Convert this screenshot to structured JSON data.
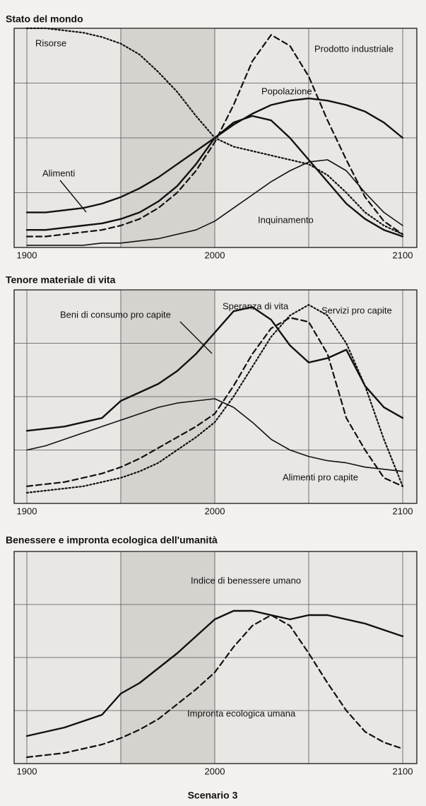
{
  "chart_data": [
    {
      "type": "line",
      "title": "Stato del mondo",
      "x": [
        1900,
        1910,
        1920,
        1930,
        1940,
        1950,
        1960,
        1970,
        1980,
        1990,
        2000,
        2010,
        2020,
        2030,
        2040,
        2050,
        2060,
        2070,
        2080,
        2090,
        2100
      ],
      "xlim": [
        1900,
        2100
      ],
      "xticks": [
        1900,
        2000,
        2100
      ],
      "ylim": [
        0,
        100
      ],
      "grid": true,
      "series": [
        {
          "name": "Risorse",
          "color": "#111111",
          "style": "dotted",
          "values": [
            100,
            100,
            99,
            98,
            96,
            93,
            88,
            80,
            71,
            60,
            50,
            46,
            44,
            42,
            40,
            38,
            33,
            25,
            16,
            10,
            6
          ]
        },
        {
          "name": "Prodotto industriale",
          "color": "#111111",
          "style": "dashed",
          "values": [
            5,
            5,
            6,
            7,
            8,
            10,
            13,
            18,
            25,
            35,
            48,
            65,
            85,
            97,
            92,
            78,
            58,
            40,
            23,
            12,
            6
          ]
        },
        {
          "name": "Popolazione",
          "color": "#111111",
          "style": "solid",
          "values": [
            16,
            16,
            17,
            18,
            20,
            23,
            27,
            32,
            38,
            44,
            50,
            56,
            61,
            65,
            67,
            68,
            67,
            65,
            62,
            57,
            50
          ]
        },
        {
          "name": "Alimenti",
          "color": "#111111",
          "style": "solid",
          "values": [
            8,
            8,
            9,
            10,
            11,
            13,
            16,
            21,
            28,
            38,
            50,
            57,
            60,
            58,
            50,
            40,
            30,
            20,
            13,
            8,
            5
          ]
        },
        {
          "name": "Inquinamento",
          "color": "#111111",
          "style": "thin",
          "values": [
            1,
            1,
            1,
            1,
            2,
            2,
            3,
            4,
            6,
            8,
            12,
            18,
            24,
            30,
            35,
            39,
            40,
            35,
            25,
            16,
            10
          ]
        }
      ]
    },
    {
      "type": "line",
      "title": "Tenore materiale di vita",
      "x": [
        1900,
        1910,
        1920,
        1930,
        1940,
        1950,
        1960,
        1970,
        1980,
        1990,
        2000,
        2010,
        2020,
        2030,
        2040,
        2050,
        2060,
        2070,
        2080,
        2090,
        2100
      ],
      "xlim": [
        1900,
        2100
      ],
      "xticks": [
        1900,
        2000,
        2100
      ],
      "ylim": [
        0,
        100
      ],
      "grid": true,
      "series": [
        {
          "name": "Beni di consumo pro capite",
          "color": "#111111",
          "style": "dashed",
          "values": [
            8,
            9,
            10,
            12,
            14,
            17,
            21,
            26,
            31,
            36,
            42,
            55,
            70,
            82,
            87,
            85,
            70,
            40,
            25,
            12,
            8
          ]
        },
        {
          "name": "Speranza di vita",
          "color": "#111111",
          "style": "solid",
          "values": [
            34,
            35,
            36,
            38,
            40,
            48,
            52,
            56,
            62,
            70,
            80,
            90,
            92,
            86,
            74,
            66,
            68,
            72,
            55,
            45,
            40
          ]
        },
        {
          "name": "Servizi pro capite",
          "color": "#111111",
          "style": "dotted",
          "values": [
            5,
            6,
            7,
            8,
            10,
            12,
            15,
            19,
            25,
            31,
            38,
            50,
            64,
            78,
            88,
            93,
            88,
            75,
            55,
            30,
            8
          ]
        },
        {
          "name": "Alimenti pro capite",
          "color": "#111111",
          "style": "thin",
          "values": [
            25,
            27,
            30,
            33,
            36,
            39,
            42,
            45,
            47,
            48,
            49,
            45,
            38,
            30,
            25,
            22,
            20,
            19,
            17,
            16,
            15
          ]
        }
      ]
    },
    {
      "type": "line",
      "title": "Benessere e impronta ecologica dell'umanità",
      "x": [
        1900,
        1910,
        1920,
        1930,
        1940,
        1950,
        1960,
        1970,
        1980,
        1990,
        2000,
        2010,
        2020,
        2030,
        2040,
        2050,
        2060,
        2070,
        2080,
        2090,
        2100
      ],
      "xlim": [
        1900,
        2100
      ],
      "xticks": [
        1900,
        2000,
        2100
      ],
      "ylim": [
        0,
        100
      ],
      "grid": true,
      "series": [
        {
          "name": "Indice di benessere umano",
          "color": "#111111",
          "style": "solid",
          "values": [
            13,
            15,
            17,
            20,
            23,
            33,
            38,
            45,
            52,
            60,
            68,
            72,
            72,
            70,
            68,
            70,
            70,
            68,
            66,
            63,
            60
          ]
        },
        {
          "name": "Impronta ecologica umana",
          "color": "#111111",
          "style": "dashed",
          "values": [
            3,
            4,
            5,
            7,
            9,
            12,
            16,
            21,
            28,
            35,
            43,
            55,
            65,
            70,
            65,
            52,
            38,
            25,
            15,
            10,
            7
          ]
        }
      ]
    }
  ],
  "caption": "Scenario 3"
}
